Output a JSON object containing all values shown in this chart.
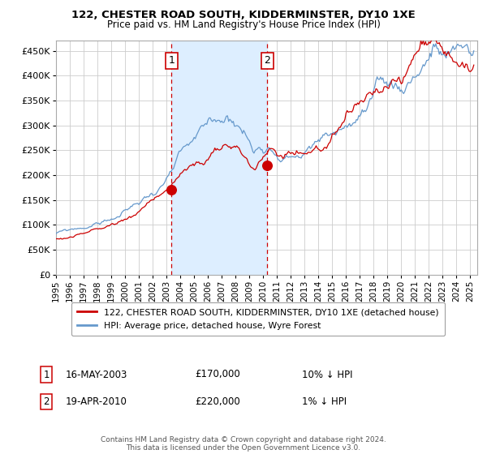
{
  "title1": "122, CHESTER ROAD SOUTH, KIDDERMINSTER, DY10 1XE",
  "title2": "Price paid vs. HM Land Registry's House Price Index (HPI)",
  "ylim": [
    0,
    470000
  ],
  "xlim_start": 1995.0,
  "xlim_end": 2025.5,
  "yticks": [
    0,
    50000,
    100000,
    150000,
    200000,
    250000,
    300000,
    350000,
    400000,
    450000
  ],
  "ytick_labels": [
    "£0",
    "£50K",
    "£100K",
    "£150K",
    "£200K",
    "£250K",
    "£300K",
    "£350K",
    "£400K",
    "£450K"
  ],
  "xtick_years": [
    1995,
    1996,
    1997,
    1998,
    1999,
    2000,
    2001,
    2002,
    2003,
    2004,
    2005,
    2006,
    2007,
    2008,
    2009,
    2010,
    2011,
    2012,
    2013,
    2014,
    2015,
    2016,
    2017,
    2018,
    2019,
    2020,
    2021,
    2022,
    2023,
    2024,
    2025
  ],
  "sale1_date": 2003.37,
  "sale1_price": 170000,
  "sale2_date": 2010.3,
  "sale2_price": 220000,
  "shading_start": 2003.37,
  "shading_end": 2010.3,
  "sale_color": "#cc0000",
  "hpi_color": "#6699cc",
  "legend_label1": "122, CHESTER ROAD SOUTH, KIDDERMINSTER, DY10 1XE (detached house)",
  "legend_label2": "HPI: Average price, detached house, Wyre Forest",
  "annotation1_label": "1",
  "annotation2_label": "2",
  "annotation1_date": "16-MAY-2003",
  "annotation1_price": "£170,000",
  "annotation1_hpi": "10% ↓ HPI",
  "annotation2_date": "19-APR-2010",
  "annotation2_price": "£220,000",
  "annotation2_hpi": "1% ↓ HPI",
  "footer": "Contains HM Land Registry data © Crown copyright and database right 2024.\nThis data is licensed under the Open Government Licence v3.0.",
  "bg_color": "#ffffff",
  "grid_color": "#cccccc",
  "shading_color": "#ddeeff"
}
